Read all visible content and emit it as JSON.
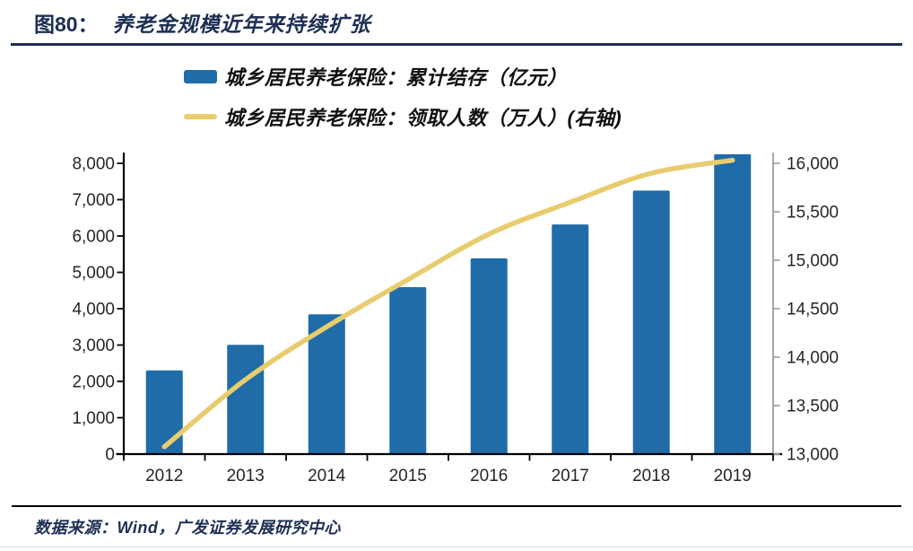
{
  "header": {
    "figure_label": "图80：",
    "title": "养老金规模近年来持续扩张"
  },
  "footer": {
    "source": "数据来源：Wind，广发证券发展研究中心"
  },
  "colors": {
    "navy": "#1E2F54",
    "bar-blue": "#1F6CA8",
    "line-gold": "#E8CC6D",
    "axis-text": "#262626",
    "axis-gray": "#A6A6A6",
    "rule-dark": "#000000",
    "rule-light": "#D9D9D9"
  },
  "chart_data": {
    "type": "bar+line",
    "categories": [
      "2012",
      "2013",
      "2014",
      "2015",
      "2016",
      "2017",
      "2018",
      "2019"
    ],
    "series": [
      {
        "name": "城乡居民养老保险：累计结存（亿元）",
        "type": "bar",
        "axis": "left",
        "color": "#1F6CA8",
        "values": [
          2302,
          3006,
          3845,
          4592,
          5385,
          6318,
          7250,
          8249
        ]
      },
      {
        "name": "城乡居民养老保险：领取人数（万人）(右轴)",
        "type": "line",
        "axis": "right",
        "color": "#E8CC6D",
        "values": [
          13075,
          13768,
          14313,
          14800,
          15270,
          15598,
          15898,
          16032
        ]
      }
    ],
    "left_axis": {
      "min": 0,
      "max": 8000,
      "step": 1000
    },
    "right_axis": {
      "min": 13000,
      "max": 16000,
      "step": 500
    },
    "grid": false,
    "legend_position": "top-center"
  }
}
